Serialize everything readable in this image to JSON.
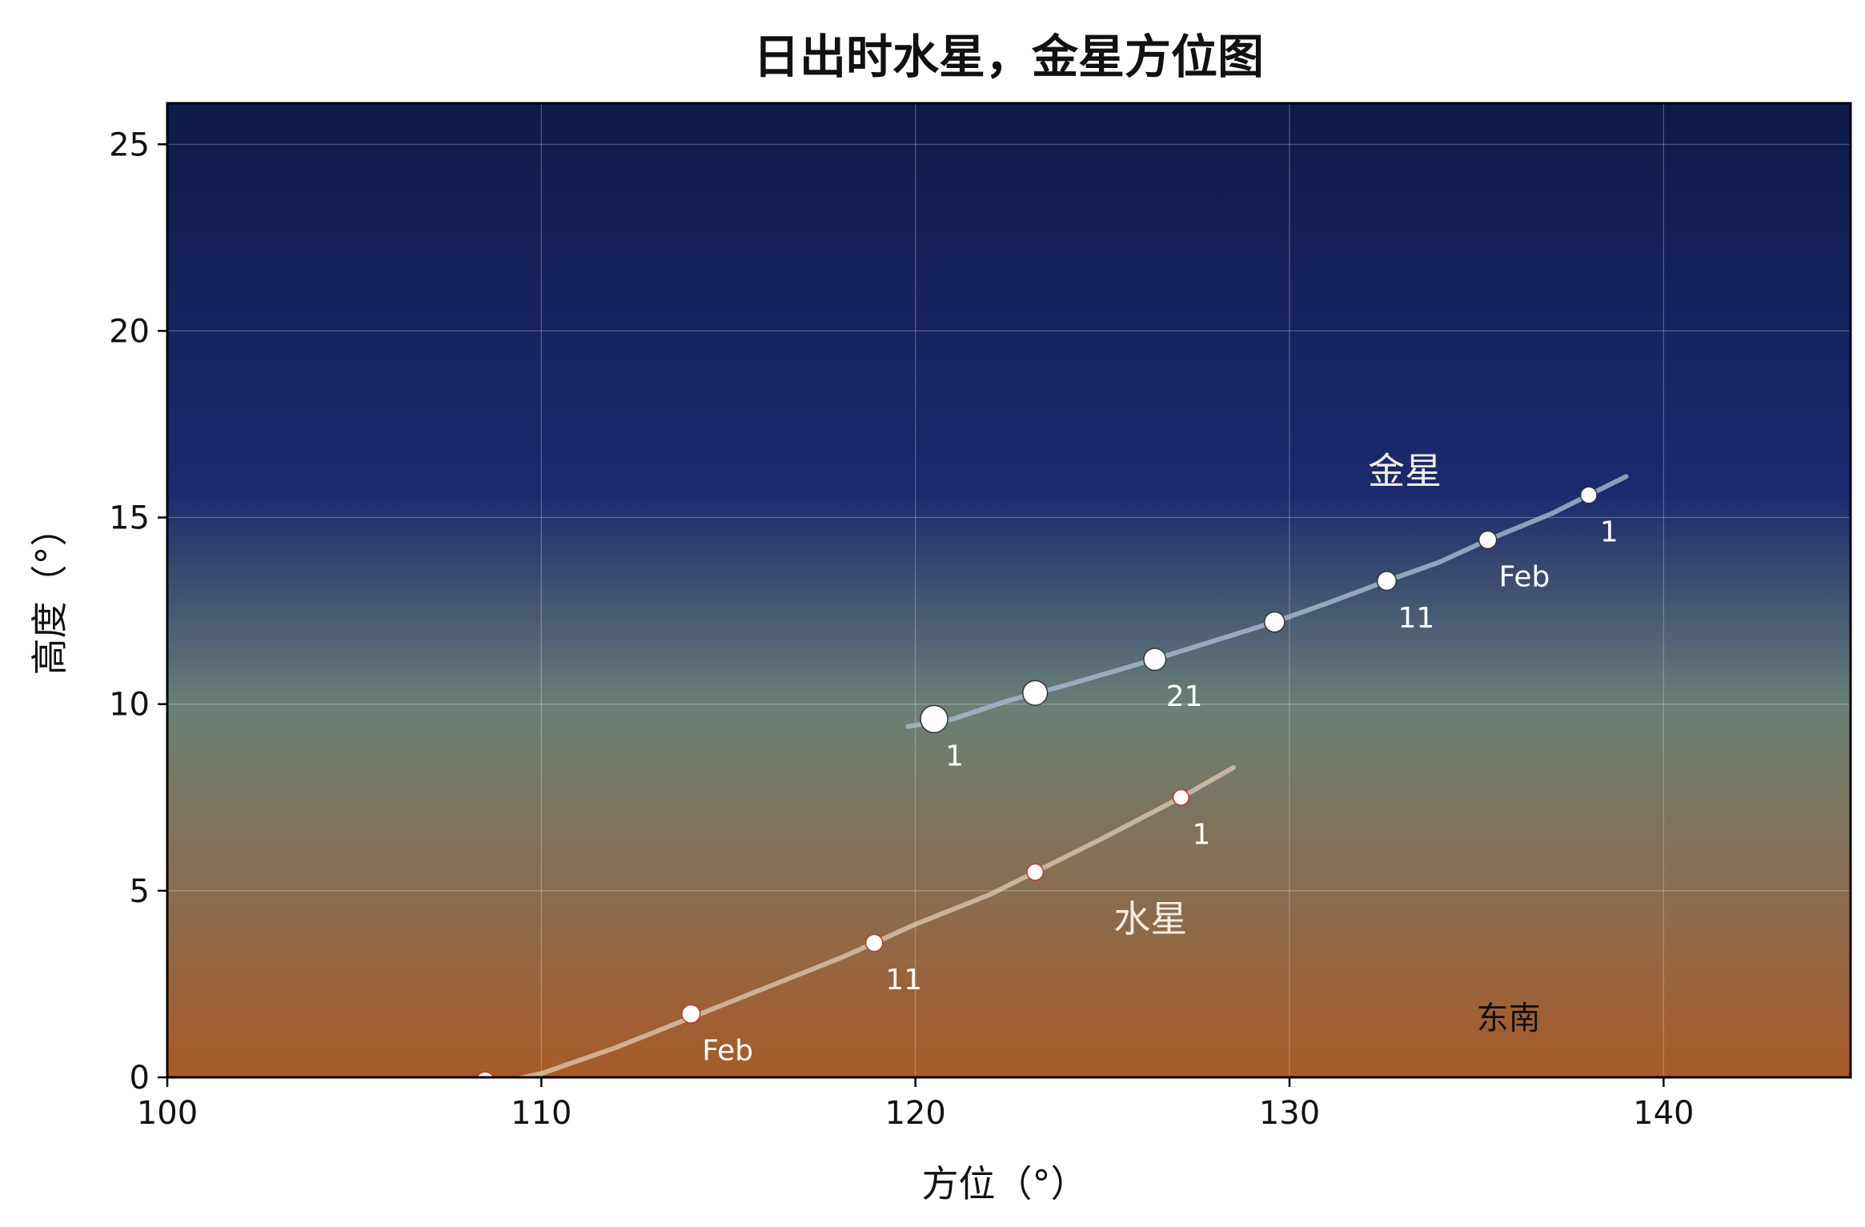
{
  "chart_data": {
    "type": "scatter",
    "title": "日出时水星，金星方位图",
    "xlabel": "方位（°）",
    "ylabel": "高度（°）",
    "xlim": [
      100,
      145
    ],
    "ylim": [
      0,
      26.1
    ],
    "xticks": [
      100,
      110,
      120,
      130,
      140
    ],
    "yticks": [
      0,
      5,
      10,
      15,
      20,
      25
    ],
    "grid": true,
    "background": {
      "type": "vertical-gradient",
      "top_color": "#101a4a",
      "mid_color": "#6b7f76",
      "bottom_color": "#a85a28"
    },
    "series": [
      {
        "name": "金星",
        "curve_color": "#a9bad0",
        "curve": [
          [
            119.8,
            9.4
          ],
          [
            121,
            9.6
          ],
          [
            122.5,
            10.1
          ],
          [
            124,
            10.5
          ],
          [
            126.4,
            11.2
          ],
          [
            128,
            11.7
          ],
          [
            129.6,
            12.2
          ],
          [
            131,
            12.7
          ],
          [
            132.6,
            13.3
          ],
          [
            134,
            13.8
          ],
          [
            135.3,
            14.4
          ],
          [
            137,
            15.1
          ],
          [
            138,
            15.6
          ],
          [
            139,
            16.1
          ]
        ],
        "points": [
          {
            "x": 120.5,
            "y": 9.6,
            "label": "1",
            "size": 3
          },
          {
            "x": 123.2,
            "y": 10.3,
            "label": "",
            "size": 2.6
          },
          {
            "x": 126.4,
            "y": 11.2,
            "label": "21",
            "size": 2.2
          },
          {
            "x": 129.6,
            "y": 12.2,
            "label": "",
            "size": 1.9
          },
          {
            "x": 132.6,
            "y": 13.3,
            "label": "11",
            "size": 1.7
          },
          {
            "x": 135.3,
            "y": 14.4,
            "label": "Feb",
            "size": 1.5
          },
          {
            "x": 138.0,
            "y": 15.6,
            "label": "1",
            "size": 1.3
          }
        ],
        "name_label": {
          "text": "金星",
          "x": 132.1,
          "y": 15.9
        },
        "point_edge": "#333333"
      },
      {
        "name": "水星",
        "curve_color": "#d9c4ae",
        "curve": [
          [
            108.6,
            -0.2
          ],
          [
            110,
            0.1
          ],
          [
            112,
            0.8
          ],
          [
            114,
            1.6
          ],
          [
            116,
            2.4
          ],
          [
            118,
            3.2
          ],
          [
            118.9,
            3.6
          ],
          [
            120,
            4.1
          ],
          [
            122,
            4.9
          ],
          [
            123.2,
            5.5
          ],
          [
            125,
            6.4
          ],
          [
            127.1,
            7.5
          ],
          [
            128.5,
            8.3
          ]
        ],
        "points": [
          {
            "x": 108.5,
            "y": -0.1,
            "label": "",
            "size": 1.6
          },
          {
            "x": 114.0,
            "y": 1.7,
            "label": "Feb",
            "size": 1.6
          },
          {
            "x": 118.9,
            "y": 3.6,
            "label": "11",
            "size": 1.4
          },
          {
            "x": 123.2,
            "y": 5.5,
            "label": "",
            "size": 1.3
          },
          {
            "x": 127.1,
            "y": 7.5,
            "label": "1",
            "size": 1.2
          }
        ],
        "name_label": {
          "text": "水星",
          "x": 125.3,
          "y": 3.9
        },
        "point_edge": "#c0392b"
      }
    ],
    "annotations": [
      {
        "text": "东南",
        "x": 135.0,
        "y": 1.3,
        "color": "#111111"
      }
    ]
  }
}
